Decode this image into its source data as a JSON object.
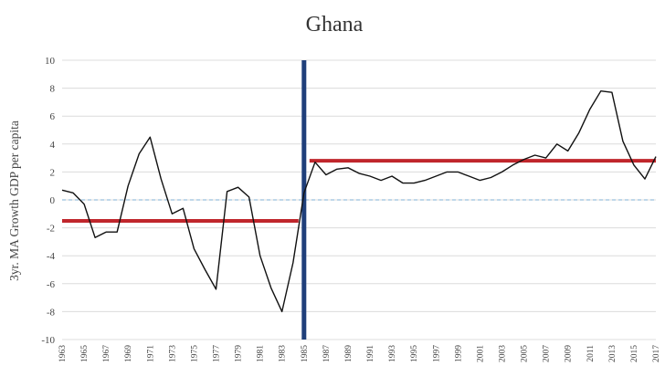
{
  "chart_data": {
    "type": "line",
    "title": "Ghana",
    "ylabel": "3yr. MA Growth GDP per capita",
    "xlabel": "",
    "ylim": [
      -10,
      10
    ],
    "yticks": [
      -10,
      -8,
      -6,
      -4,
      -2,
      0,
      2,
      4,
      6,
      8,
      10
    ],
    "xlim": [
      1963,
      2017
    ],
    "xticks": [
      1963,
      1965,
      1967,
      1969,
      1971,
      1973,
      1975,
      1977,
      1979,
      1981,
      1983,
      1985,
      1987,
      1989,
      1991,
      1993,
      1995,
      1997,
      1999,
      2001,
      2003,
      2005,
      2007,
      2009,
      2011,
      2013,
      2015,
      2017
    ],
    "grid": true,
    "legend": "none",
    "series": [
      {
        "color": "#111111",
        "x": [
          1963,
          1964,
          1965,
          1966,
          1967,
          1968,
          1969,
          1970,
          1971,
          1972,
          1973,
          1974,
          1975,
          1976,
          1977,
          1978,
          1979,
          1980,
          1981,
          1982,
          1983,
          1984,
          1985,
          1986,
          1987,
          1988,
          1989,
          1990,
          1991,
          1992,
          1993,
          1994,
          1995,
          1996,
          1997,
          1998,
          1999,
          2000,
          2001,
          2002,
          2003,
          2004,
          2005,
          2006,
          2007,
          2008,
          2009,
          2010,
          2011,
          2012,
          2013,
          2014,
          2015,
          2016,
          2017
        ],
        "y": [
          0.7,
          0.5,
          -0.3,
          -2.7,
          -2.3,
          -2.3,
          1.0,
          3.3,
          4.5,
          1.5,
          -1.0,
          -0.6,
          -3.5,
          -5.0,
          -6.4,
          0.6,
          0.9,
          0.2,
          -4.0,
          -6.3,
          -8.0,
          -4.5,
          0.5,
          2.7,
          1.8,
          2.2,
          2.3,
          1.9,
          1.7,
          1.4,
          1.7,
          1.2,
          1.2,
          1.4,
          1.7,
          2.0,
          2.0,
          1.7,
          1.4,
          1.6,
          2.0,
          2.5,
          2.9,
          3.2,
          3.0,
          4.0,
          3.5,
          4.8,
          6.5,
          7.8,
          7.7,
          4.2,
          2.5,
          1.5,
          3.1
        ]
      }
    ],
    "reference_lines": {
      "zero_line": {
        "y": 0,
        "color": "#7fb2d6"
      },
      "break_year": {
        "x": 1985,
        "color": "#1f3f7a"
      },
      "pre_mean": {
        "x_start": 1963,
        "x_end": 1984.5,
        "y": -1.5,
        "color": "#c0262c"
      },
      "post_mean": {
        "x_start": 1985.5,
        "x_end": 2017,
        "y": 2.8,
        "color": "#c0262c"
      }
    }
  }
}
